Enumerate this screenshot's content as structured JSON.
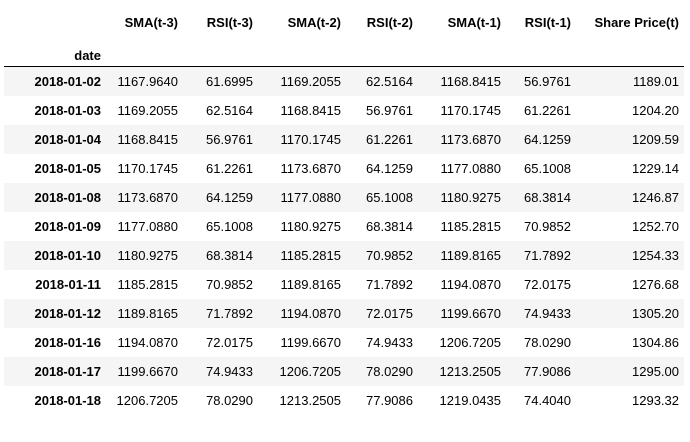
{
  "table": {
    "index_name": "date",
    "columns": [
      "SMA(t-3)",
      "RSI(t-3)",
      "SMA(t-2)",
      "RSI(t-2)",
      "SMA(t-1)",
      "RSI(t-1)",
      "Share Price(t)"
    ],
    "rows": [
      {
        "date": "2018-01-02",
        "cells": [
          "1167.9640",
          "61.6995",
          "1169.2055",
          "62.5164",
          "1168.8415",
          "56.9761",
          "1189.01"
        ]
      },
      {
        "date": "2018-01-03",
        "cells": [
          "1169.2055",
          "62.5164",
          "1168.8415",
          "56.9761",
          "1170.1745",
          "61.2261",
          "1204.20"
        ]
      },
      {
        "date": "2018-01-04",
        "cells": [
          "1168.8415",
          "56.9761",
          "1170.1745",
          "61.2261",
          "1173.6870",
          "64.1259",
          "1209.59"
        ]
      },
      {
        "date": "2018-01-05",
        "cells": [
          "1170.1745",
          "61.2261",
          "1173.6870",
          "64.1259",
          "1177.0880",
          "65.1008",
          "1229.14"
        ]
      },
      {
        "date": "2018-01-08",
        "cells": [
          "1173.6870",
          "64.1259",
          "1177.0880",
          "65.1008",
          "1180.9275",
          "68.3814",
          "1246.87"
        ]
      },
      {
        "date": "2018-01-09",
        "cells": [
          "1177.0880",
          "65.1008",
          "1180.9275",
          "68.3814",
          "1185.2815",
          "70.9852",
          "1252.70"
        ]
      },
      {
        "date": "2018-01-10",
        "cells": [
          "1180.9275",
          "68.3814",
          "1185.2815",
          "70.9852",
          "1189.8165",
          "71.7892",
          "1254.33"
        ]
      },
      {
        "date": "2018-01-11",
        "cells": [
          "1185.2815",
          "70.9852",
          "1189.8165",
          "71.7892",
          "1194.0870",
          "72.0175",
          "1276.68"
        ]
      },
      {
        "date": "2018-01-12",
        "cells": [
          "1189.8165",
          "71.7892",
          "1194.0870",
          "72.0175",
          "1199.6670",
          "74.9433",
          "1305.20"
        ]
      },
      {
        "date": "2018-01-16",
        "cells": [
          "1194.0870",
          "72.0175",
          "1199.6670",
          "74.9433",
          "1206.7205",
          "78.0290",
          "1304.86"
        ]
      },
      {
        "date": "2018-01-17",
        "cells": [
          "1199.6670",
          "74.9433",
          "1206.7205",
          "78.0290",
          "1213.2505",
          "77.9086",
          "1295.00"
        ]
      },
      {
        "date": "2018-01-18",
        "cells": [
          "1206.7205",
          "78.0290",
          "1213.2505",
          "77.9086",
          "1219.0435",
          "74.4040",
          "1293.32"
        ]
      }
    ]
  }
}
